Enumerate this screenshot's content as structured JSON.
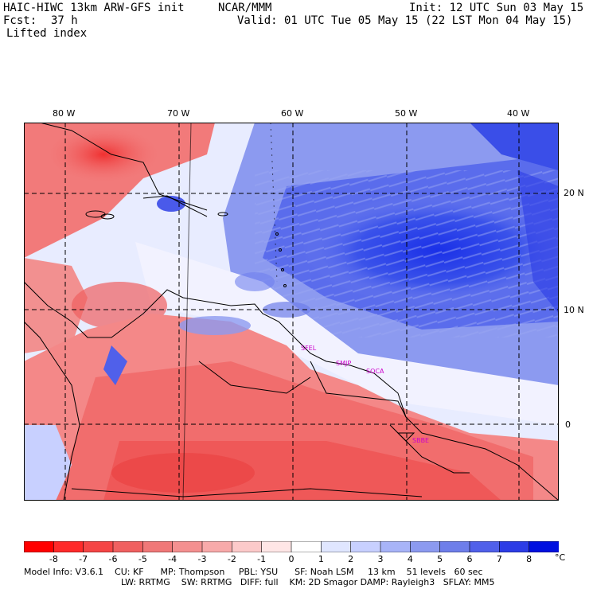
{
  "header": {
    "title": "HAIC-HIWC 13km ARW-GFS init",
    "org": "NCAR/MMM",
    "init": "Init: 12 UTC Sun 03 May 15",
    "fcst_label": "Fcst:",
    "fcst_value": "37 h",
    "valid": "Valid: 01 UTC Tue 05 May 15 (22 LST Mon 04 May 15)",
    "field": "Lifted index"
  },
  "map": {
    "lon_labels": [
      "80 W",
      "70 W",
      "60 W",
      "50 W",
      "40 W"
    ],
    "lat_labels": [
      "20 N",
      "10 N",
      "0"
    ],
    "stations": [
      "SFEL",
      "SMJP",
      "SOCA",
      "SBBE"
    ]
  },
  "colorbar": {
    "labels": [
      "-8",
      "-7",
      "-6",
      "-5",
      "-4",
      "-3",
      "-2",
      "-1",
      "0",
      "1",
      "2",
      "3",
      "4",
      "5",
      "6",
      "7",
      "8"
    ],
    "unit": "°C",
    "colors": [
      "#ff0000",
      "#ff2a2a",
      "#f54545",
      "#f06060",
      "#f07878",
      "#f49090",
      "#f8aaaa",
      "#fccaca",
      "#ffe6e6",
      "#ffffff",
      "#e0e6ff",
      "#c8d0ff",
      "#a8b4f8",
      "#8c9af0",
      "#6e7eea",
      "#5060ea",
      "#2c3ce6",
      "#0010e0"
    ]
  },
  "footer": {
    "line1": "Model Info: V3.6.1    CU: KF      MP: Thompson     PBL: YSU      SF: Noah LSM     13 km    51 levels   60 sec",
    "line2": "LW: RRTMG    SW: RRTMG   DIFF: full    KM: 2D Smagor DAMP: Rayleigh3   SFLAY: MM5"
  }
}
